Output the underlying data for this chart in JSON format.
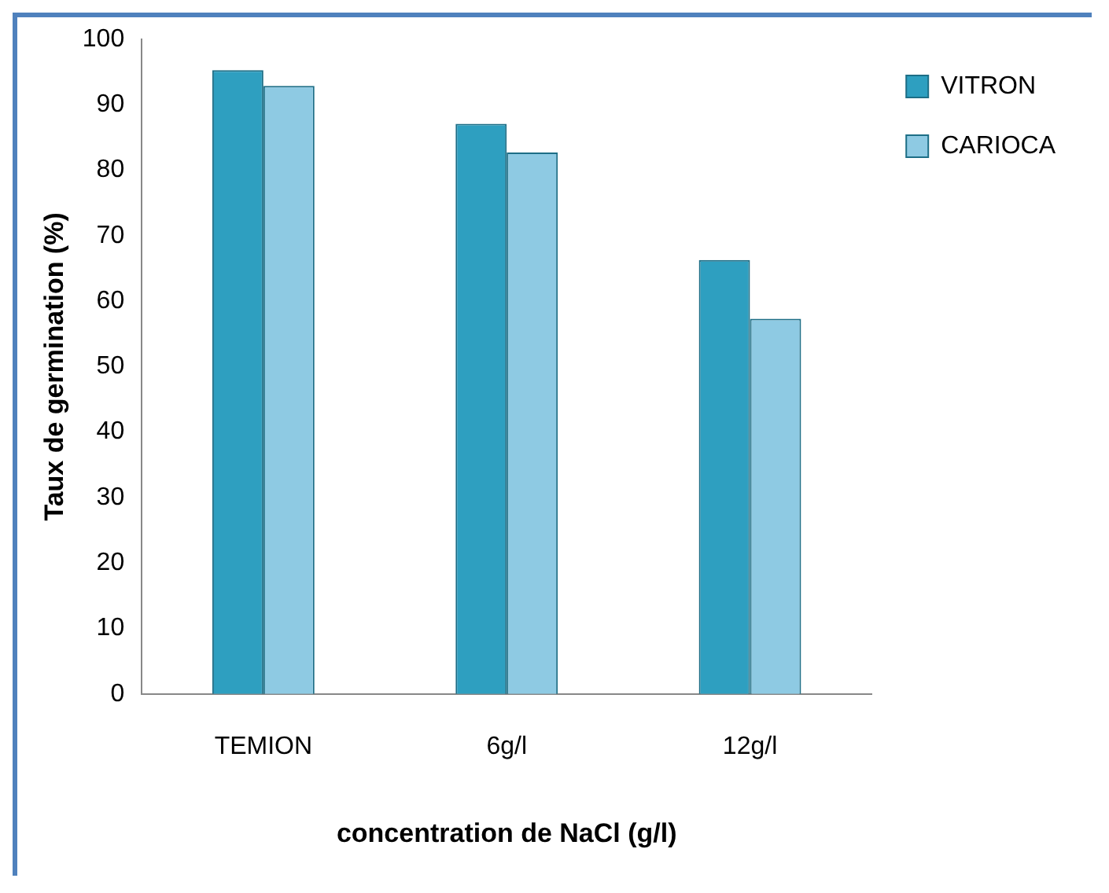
{
  "chart_data": {
    "type": "bar",
    "xlabel": "concentration de NaCl (g/l)",
    "ylabel": "Taux de germination (%)",
    "categories": [
      "TEMION",
      "6g/l",
      "12g/l"
    ],
    "series": [
      {
        "name": "VITRON",
        "color": "#2e9fc0",
        "values": [
          95.3,
          87.1,
          66.3
        ]
      },
      {
        "name": "CARIOCA",
        "color": "#8ecae3",
        "values": [
          92.9,
          82.7,
          57.3
        ]
      }
    ],
    "ylim": [
      0,
      100
    ],
    "yticks": [
      0,
      10,
      20,
      30,
      40,
      50,
      60,
      70,
      80,
      90,
      100
    ],
    "grid": false,
    "legend": "right"
  }
}
